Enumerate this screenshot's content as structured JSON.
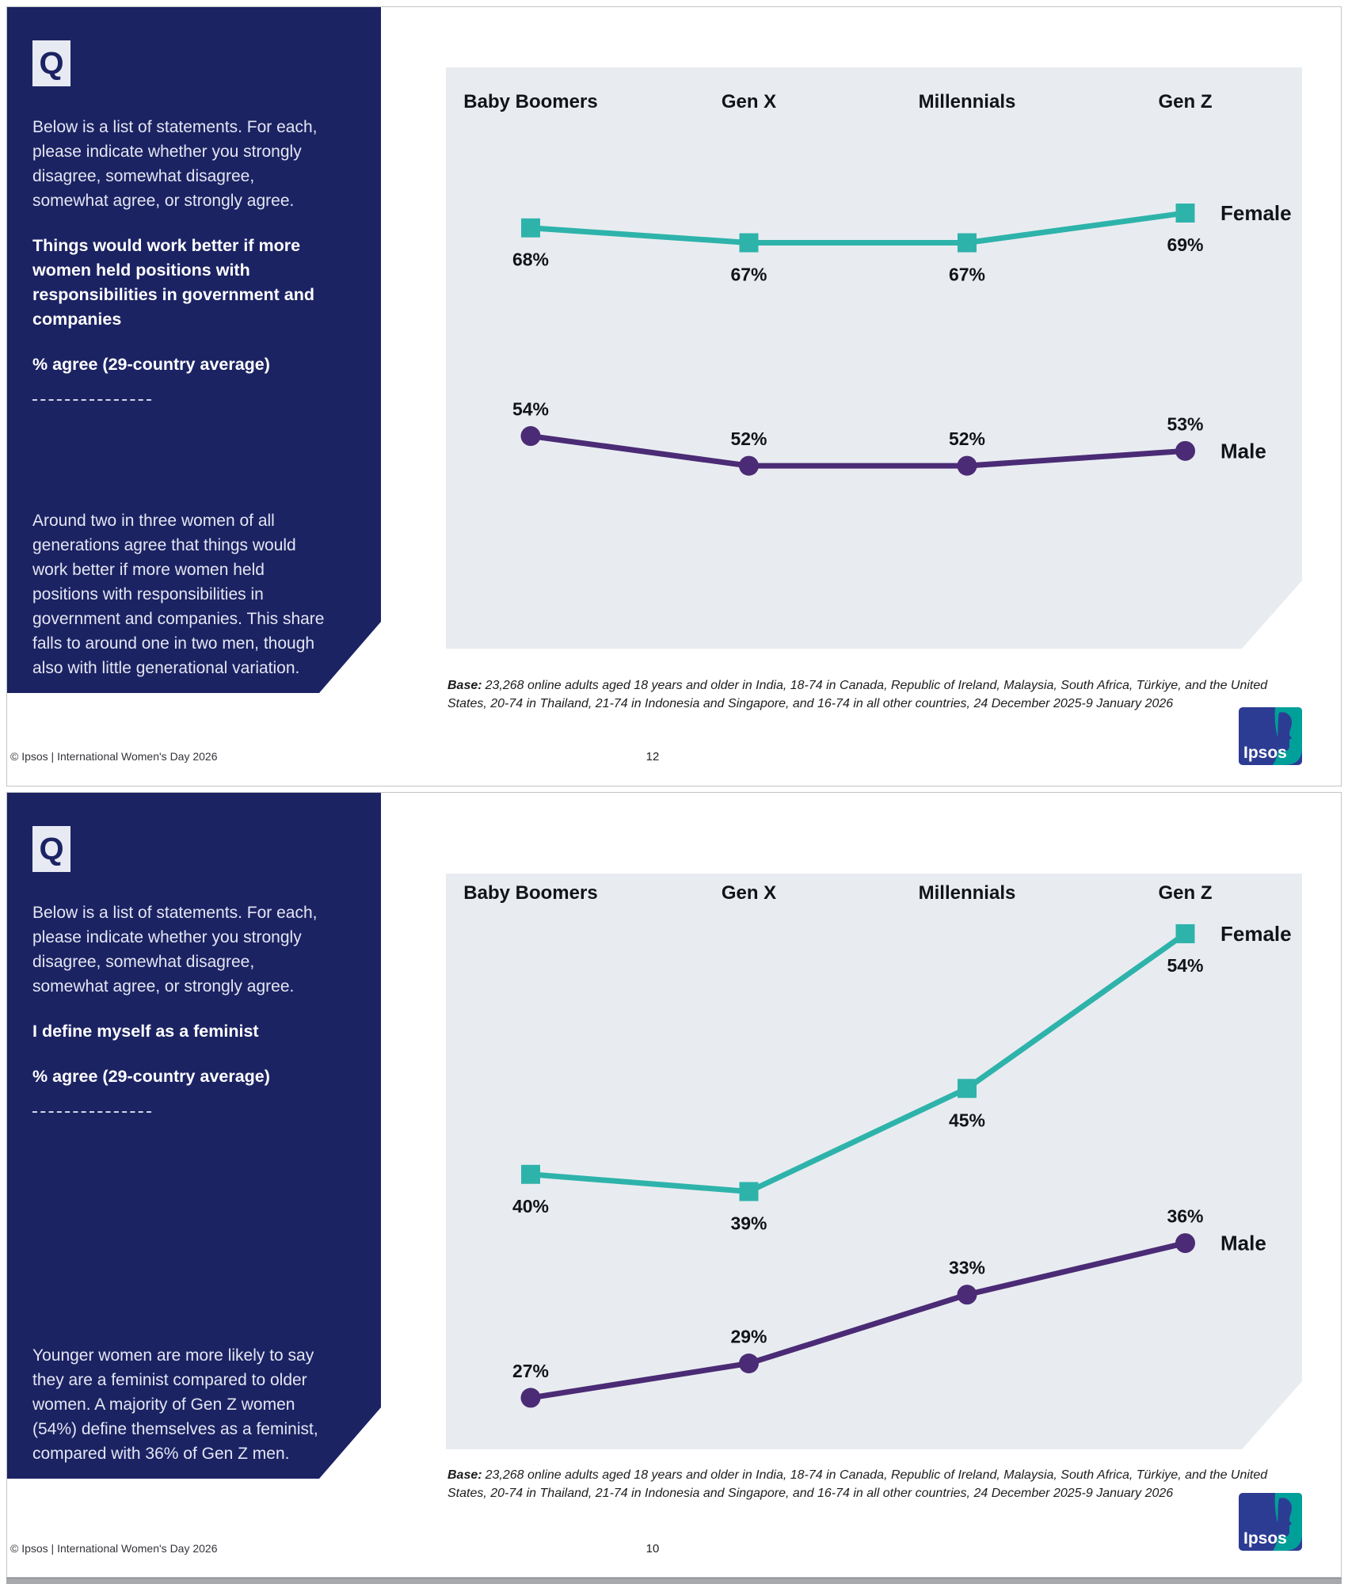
{
  "brand": {
    "footer": "© Ipsos | International Women's Day 2026",
    "logo_text": "Ipsos",
    "colors": {
      "sidebar_navy": "#1c2363",
      "chart_panel_gray": "#e8ecf0",
      "female_teal": "#2eb3ab",
      "male_purple": "#4b2b75",
      "logo_navy": "#2d3c93",
      "logo_teal": "#00a09a"
    }
  },
  "slides": [
    {
      "page_number": "12",
      "q_badge": "Q",
      "intro": "Below is a list of statements. For each, please indicate whether you strongly disagree, somewhat disagree, somewhat agree, or strongly agree.",
      "statement": "Things would work better if more women held positions with responsibilities in government and companies",
      "measure": "% agree (29-country average)",
      "insight": "Around two in three women of all generations agree that things would work better if more women held positions with responsibilities in government and companies. This share falls to around one in two men, though also with little generational variation.",
      "base_label": "Base:",
      "base_text": "23,268 online adults aged 18 years and older in India, 18-74 in Canada, Republic of Ireland, Malaysia, South Africa, Türkiye, and the United States, 20-74 in Thailand, 21-74 in Indonesia and Singapore, and 16-74 in all other countries, 24 December 2025-9 January 2026",
      "chart_data": {
        "type": "line",
        "categories": [
          "Baby Boomers",
          "Gen X",
          "Millennials",
          "Gen Z"
        ],
        "series": [
          {
            "name": "Female",
            "values": [
              68,
              67,
              67,
              69
            ],
            "color": "#2eb3ab",
            "marker": "square",
            "label_position": "below"
          },
          {
            "name": "Male",
            "values": [
              54,
              52,
              52,
              53
            ],
            "color": "#4b2b75",
            "marker": "circle",
            "label_position": "above"
          }
        ],
        "value_suffix": "%",
        "ylim": [
          39.7,
          78.8
        ],
        "grid": false,
        "legend_position": "right-of-last-point"
      }
    },
    {
      "page_number": "10",
      "q_badge": "Q",
      "intro": "Below is a list of statements. For each, please indicate whether you strongly disagree, somewhat disagree, somewhat agree, or strongly agree.",
      "statement": "I define myself as a feminist",
      "measure": "% agree (29-country average)",
      "insight": "Younger women are more likely to say they are a feminist compared to older women. A majority of Gen Z women (54%) define themselves as a feminist, compared with 36% of Gen Z men.",
      "base_label": "Base:",
      "base_text": "23,268 online adults aged 18 years and older in India, 18-74 in Canada, Republic of Ireland, Malaysia, South Africa, Türkiye, and the United States, 20-74 in Thailand, 21-74 in Indonesia and Singapore, and 16-74 in all other countries, 24 December 2025-9 January 2026",
      "chart_data": {
        "type": "line",
        "categories": [
          "Baby Boomers",
          "Gen X",
          "Millennials",
          "Gen Z"
        ],
        "series": [
          {
            "name": "Female",
            "values": [
              40,
              39,
              45,
              54
            ],
            "color": "#2eb3ab",
            "marker": "square",
            "label_position": "below"
          },
          {
            "name": "Male",
            "values": [
              27,
              29,
              33,
              36
            ],
            "color": "#4b2b75",
            "marker": "circle",
            "label_position": "above"
          }
        ],
        "value_suffix": "%",
        "ylim": [
          24.0,
          57.5
        ],
        "grid": false,
        "legend_position": "right-of-last-point"
      }
    }
  ]
}
